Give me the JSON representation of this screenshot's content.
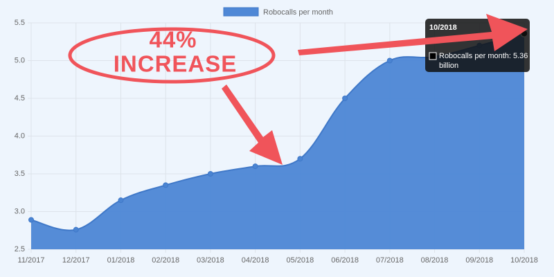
{
  "chart_data": {
    "type": "area",
    "categories": [
      "11/2017",
      "12/2017",
      "01/2018",
      "02/2018",
      "03/2018",
      "04/2018",
      "05/2018",
      "06/2018",
      "07/2018",
      "08/2018",
      "09/2018",
      "10/2018"
    ],
    "series": [
      {
        "name": "Robocalls per month",
        "color": "#4f88d6",
        "values": [
          2.89,
          2.76,
          3.15,
          3.35,
          3.5,
          3.6,
          3.7,
          4.5,
          5.0,
          5.05,
          5.2,
          5.36
        ]
      }
    ],
    "ylim": [
      2.5,
      5.5
    ],
    "yticks": [
      2.5,
      {
        "value": 3,
        "label": "3.0"
      },
      3.5,
      {
        "value": 4,
        "label": "4.0"
      },
      4.5,
      {
        "value": 5,
        "label": "5.0"
      },
      5.5
    ],
    "grid": true,
    "legend": "top",
    "tooltip_text": "Robocalls per month: 5.36 billion",
    "annotation": [
      "44%",
      "INCREASE"
    ]
  }
}
